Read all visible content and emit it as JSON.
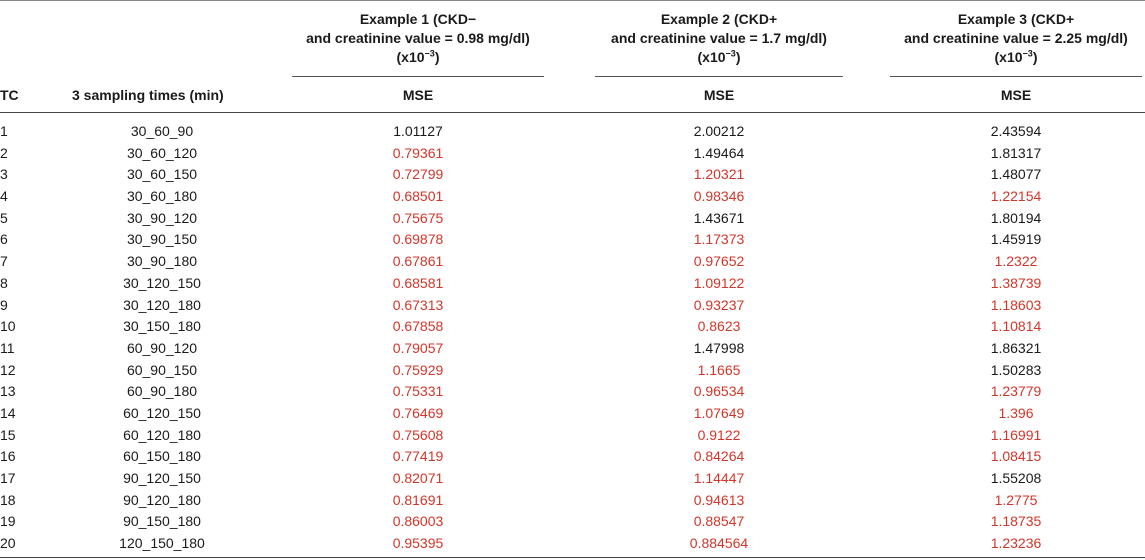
{
  "header": {
    "groups": [
      {
        "line1": "Example 1 (CKD−",
        "line2": "and creatinine value = 0.98 mg/dl)",
        "line3_base": "(x10",
        "line3_exp": "−3",
        "line3_end": ")"
      },
      {
        "line1": "Example 2 (CKD+",
        "line2": "and creatinine value = 1.7 mg/dl)",
        "line3_base": "(x10",
        "line3_exp": "−3",
        "line3_end": ")"
      },
      {
        "line1": "Example 3 (CKD+",
        "line2": "and creatinine value = 2.25 mg/dl)",
        "line3_base": "(x10",
        "line3_exp": "−3",
        "line3_end": ")"
      }
    ],
    "col_tc": "TC",
    "col_times": "3 sampling times (min)",
    "col_mse": "MSE"
  },
  "colors": {
    "highlight": "#d2362a",
    "normal": "#1a1a1a"
  },
  "rows": [
    {
      "tc": "1",
      "times": "30_60_90",
      "v": [
        "1.01127",
        "2.00212",
        "2.43594"
      ],
      "red": [
        false,
        false,
        false
      ]
    },
    {
      "tc": "2",
      "times": "30_60_120",
      "v": [
        "0.79361",
        "1.49464",
        "1.81317"
      ],
      "red": [
        true,
        false,
        false
      ]
    },
    {
      "tc": "3",
      "times": "30_60_150",
      "v": [
        "0.72799",
        "1.20321",
        "1.48077"
      ],
      "red": [
        true,
        true,
        false
      ]
    },
    {
      "tc": "4",
      "times": "30_60_180",
      "v": [
        "0.68501",
        "0.98346",
        "1.22154"
      ],
      "red": [
        true,
        true,
        true
      ]
    },
    {
      "tc": "5",
      "times": "30_90_120",
      "v": [
        "0.75675",
        "1.43671",
        "1.80194"
      ],
      "red": [
        true,
        false,
        false
      ]
    },
    {
      "tc": "6",
      "times": "30_90_150",
      "v": [
        "0.69878",
        "1.17373",
        "1.45919"
      ],
      "red": [
        true,
        true,
        false
      ]
    },
    {
      "tc": "7",
      "times": "30_90_180",
      "v": [
        "0.67861",
        "0.97652",
        "1.2322"
      ],
      "red": [
        true,
        true,
        true
      ]
    },
    {
      "tc": "8",
      "times": "30_120_150",
      "v": [
        "0.68581",
        "1.09122",
        "1.38739"
      ],
      "red": [
        true,
        true,
        true
      ]
    },
    {
      "tc": "9",
      "times": "30_120_180",
      "v": [
        "0.67313",
        "0.93237",
        "1.18603"
      ],
      "red": [
        true,
        true,
        true
      ]
    },
    {
      "tc": "10",
      "times": "30_150_180",
      "v": [
        "0.67858",
        "0.8623",
        "1.10814"
      ],
      "red": [
        true,
        true,
        true
      ]
    },
    {
      "tc": "11",
      "times": "60_90_120",
      "v": [
        "0.79057",
        "1.47998",
        "1.86321"
      ],
      "red": [
        true,
        false,
        false
      ]
    },
    {
      "tc": "12",
      "times": "60_90_150",
      "v": [
        "0.75929",
        "1.1665",
        "1.50283"
      ],
      "red": [
        true,
        true,
        false
      ]
    },
    {
      "tc": "13",
      "times": "60_90_180",
      "v": [
        "0.75331",
        "0.96534",
        "1.23779"
      ],
      "red": [
        true,
        true,
        true
      ]
    },
    {
      "tc": "14",
      "times": "60_120_150",
      "v": [
        "0.76469",
        "1.07649",
        "1.396"
      ],
      "red": [
        true,
        true,
        true
      ]
    },
    {
      "tc": "15",
      "times": "60_120_180",
      "v": [
        "0.75608",
        "0.9122",
        "1.16991"
      ],
      "red": [
        true,
        true,
        true
      ]
    },
    {
      "tc": "16",
      "times": "60_150_180",
      "v": [
        "0.77419",
        "0.84264",
        "1.08415"
      ],
      "red": [
        true,
        true,
        true
      ]
    },
    {
      "tc": "17",
      "times": "90_120_150",
      "v": [
        "0.82071",
        "1.14447",
        "1.55208"
      ],
      "red": [
        true,
        true,
        false
      ]
    },
    {
      "tc": "18",
      "times": "90_120_180",
      "v": [
        "0.81691",
        "0.94613",
        "1.2775"
      ],
      "red": [
        true,
        true,
        true
      ]
    },
    {
      "tc": "19",
      "times": "90_150_180",
      "v": [
        "0.86003",
        "0.88547",
        "1.18735"
      ],
      "red": [
        true,
        true,
        true
      ]
    },
    {
      "tc": "20",
      "times": "120_150_180",
      "v": [
        "0.95395",
        "0.884564",
        "1.23236"
      ],
      "red": [
        true,
        true,
        true
      ]
    }
  ]
}
